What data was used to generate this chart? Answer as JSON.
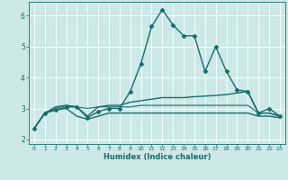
{
  "title": "",
  "xlabel": "Humidex (Indice chaleur)",
  "ylabel": "",
  "xlim": [
    -0.5,
    23.5
  ],
  "ylim": [
    1.85,
    6.45
  ],
  "yticks": [
    2,
    3,
    4,
    5,
    6
  ],
  "xticks": [
    0,
    1,
    2,
    3,
    4,
    5,
    6,
    7,
    8,
    9,
    10,
    11,
    12,
    13,
    14,
    15,
    16,
    17,
    18,
    19,
    20,
    21,
    22,
    23
  ],
  "bg_color": "#cce8e8",
  "line_color": "#1a6b6b",
  "grid_color": "#ffffff",
  "series": [
    {
      "x": [
        0,
        1,
        2,
        3,
        4,
        5,
        6,
        7,
        8,
        9,
        10,
        11,
        12,
        13,
        14,
        15,
        16,
        17,
        18,
        19,
        20,
        21,
        22,
        23
      ],
      "y": [
        2.35,
        2.85,
        2.95,
        3.05,
        3.05,
        2.7,
        2.9,
        3.0,
        3.0,
        3.55,
        4.45,
        5.65,
        6.2,
        5.7,
        5.35,
        5.35,
        4.2,
        5.0,
        4.2,
        3.6,
        3.55,
        2.85,
        3.0,
        2.75
      ],
      "marker": "D",
      "markersize": 2.5,
      "linewidth": 1.0,
      "has_marker": true
    },
    {
      "x": [
        0,
        1,
        2,
        3,
        4,
        5,
        6,
        7,
        8,
        9,
        10,
        11,
        12,
        13,
        14,
        15,
        16,
        17,
        18,
        19,
        20,
        21,
        22,
        23
      ],
      "y": [
        2.35,
        2.85,
        3.05,
        3.1,
        3.05,
        2.75,
        3.05,
        3.1,
        3.1,
        3.2,
        3.25,
        3.3,
        3.35,
        3.35,
        3.35,
        3.38,
        3.4,
        3.42,
        3.45,
        3.5,
        3.55,
        2.85,
        2.85,
        2.75
      ],
      "marker": null,
      "markersize": 0,
      "linewidth": 1.0,
      "has_marker": false
    },
    {
      "x": [
        0,
        1,
        2,
        3,
        4,
        5,
        6,
        7,
        8,
        9,
        10,
        11,
        12,
        13,
        14,
        15,
        16,
        17,
        18,
        19,
        20,
        21,
        22,
        23
      ],
      "y": [
        2.35,
        2.85,
        2.95,
        3.0,
        2.75,
        2.65,
        2.75,
        2.85,
        2.85,
        2.85,
        2.85,
        2.85,
        2.85,
        2.85,
        2.85,
        2.85,
        2.85,
        2.85,
        2.85,
        2.85,
        2.85,
        2.75,
        2.75,
        2.7
      ],
      "marker": null,
      "markersize": 0,
      "linewidth": 1.0,
      "has_marker": false
    },
    {
      "x": [
        0,
        1,
        2,
        3,
        4,
        5,
        6,
        7,
        8,
        9,
        10,
        11,
        12,
        13,
        14,
        15,
        16,
        17,
        18,
        19,
        20,
        21,
        22,
        23
      ],
      "y": [
        2.35,
        2.85,
        3.0,
        3.1,
        3.05,
        3.0,
        3.05,
        3.05,
        3.05,
        3.05,
        3.1,
        3.1,
        3.1,
        3.1,
        3.1,
        3.1,
        3.1,
        3.1,
        3.1,
        3.1,
        3.1,
        2.85,
        2.85,
        2.75
      ],
      "marker": null,
      "markersize": 0,
      "linewidth": 0.8,
      "has_marker": false
    }
  ]
}
